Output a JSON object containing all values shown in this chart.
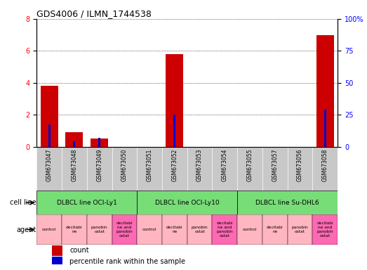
{
  "title": "GDS4006 / ILMN_1744538",
  "samples": [
    "GSM673047",
    "GSM673048",
    "GSM673049",
    "GSM673050",
    "GSM673051",
    "GSM673052",
    "GSM673053",
    "GSM673054",
    "GSM673055",
    "GSM673057",
    "GSM673056",
    "GSM673058"
  ],
  "count_values": [
    3.8,
    0.9,
    0.5,
    0.0,
    0.0,
    5.8,
    0.0,
    0.0,
    0.0,
    0.0,
    0.0,
    7.0
  ],
  "percentile_values": [
    17.5,
    4.4,
    6.9,
    0.0,
    0.0,
    25.0,
    0.0,
    0.0,
    0.0,
    0.0,
    0.0,
    28.75
  ],
  "ylim_left": [
    0,
    8
  ],
  "ylim_right": [
    0,
    100
  ],
  "yticks_left": [
    0,
    2,
    4,
    6,
    8
  ],
  "yticks_right": [
    0,
    25,
    50,
    75,
    100
  ],
  "bar_color": "#CC0000",
  "percentile_color": "#0000CC",
  "grid_color": "#000000",
  "bg_color": "#FFFFFF",
  "cell_line_bg": "#C8C8C8",
  "agent_light": "#FFB6C1",
  "agent_dark": "#FF69B4",
  "cell_line_green": "#77DD77",
  "cell_groups": [
    {
      "label": "DLBCL line OCI-Ly1",
      "start": 0,
      "end": 3
    },
    {
      "label": "DLBCL line OCI-Ly10",
      "start": 4,
      "end": 7
    },
    {
      "label": "DLBCL line Su-DHL6",
      "start": 8,
      "end": 11
    }
  ],
  "agent_labels": [
    "control",
    "decitabi\nne",
    "panobin\nostat",
    "decitabi\nne and\npanobin\nostat",
    "control",
    "decitabi\nne",
    "panobin\nostat",
    "decitabi\nne and\npanobin\nostat",
    "control",
    "decitabi\nne",
    "panobin\nostat",
    "decitabi\nne and\npanobin\nostat"
  ],
  "agent_colors": [
    "#FFB6C1",
    "#FFB6C1",
    "#FFB6C1",
    "#FF69B4",
    "#FFB6C1",
    "#FFB6C1",
    "#FFB6C1",
    "#FF69B4",
    "#FFB6C1",
    "#FFB6C1",
    "#FFB6C1",
    "#FF69B4"
  ]
}
